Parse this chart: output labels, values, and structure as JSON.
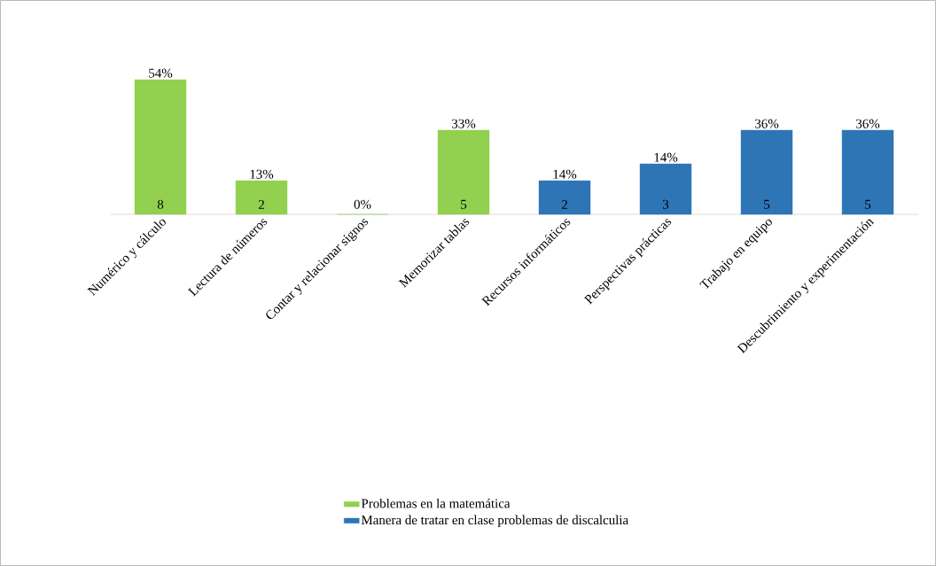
{
  "chart_data": {
    "type": "bar",
    "categories": [
      "Numérico y cálculo",
      "Lectura de números",
      "Contar y relacionar signos",
      "Memorizar tablas",
      "Recursos informáticos",
      "Perspectivas prácticas",
      "Trabajo en equipo",
      "Descubrimiento y experimentación"
    ],
    "series": [
      {
        "name": "Problemas en la matemática",
        "color": "#92d050",
        "values": [
          8,
          2,
          0,
          5,
          null,
          null,
          null,
          null
        ],
        "value_labels": [
          "8",
          "2",
          null,
          "5",
          null,
          null,
          null,
          null
        ]
      },
      {
        "name": "Manera de tratar en clase problemas de discalculia",
        "color": "#2e75b6",
        "values": [
          null,
          null,
          null,
          null,
          2,
          3,
          5,
          5
        ],
        "value_labels": [
          null,
          null,
          null,
          null,
          "2",
          "3",
          "5",
          "5"
        ]
      }
    ],
    "annotations": [
      {
        "text": "54%",
        "x": "Numérico y cálculo",
        "y": 8
      },
      {
        "text": "13%",
        "x": "Lectura de números",
        "y": 2
      },
      {
        "text": "0%",
        "x": "Contar y relacionar signos",
        "y": 0
      },
      {
        "text": "33%",
        "x": "Memorizar tablas",
        "y": 5
      },
      {
        "text": "14%",
        "x": "Recursos informáticos",
        "y": 2
      },
      {
        "text": "14%",
        "x": "Perspectivas prácticas",
        "y": 3
      },
      {
        "text": "36%",
        "x": "Trabajo en equipo",
        "y": 5
      },
      {
        "text": "36%",
        "x": "Descubrimiento y experimentación",
        "y": 5
      }
    ],
    "legend": "bottom"
  }
}
